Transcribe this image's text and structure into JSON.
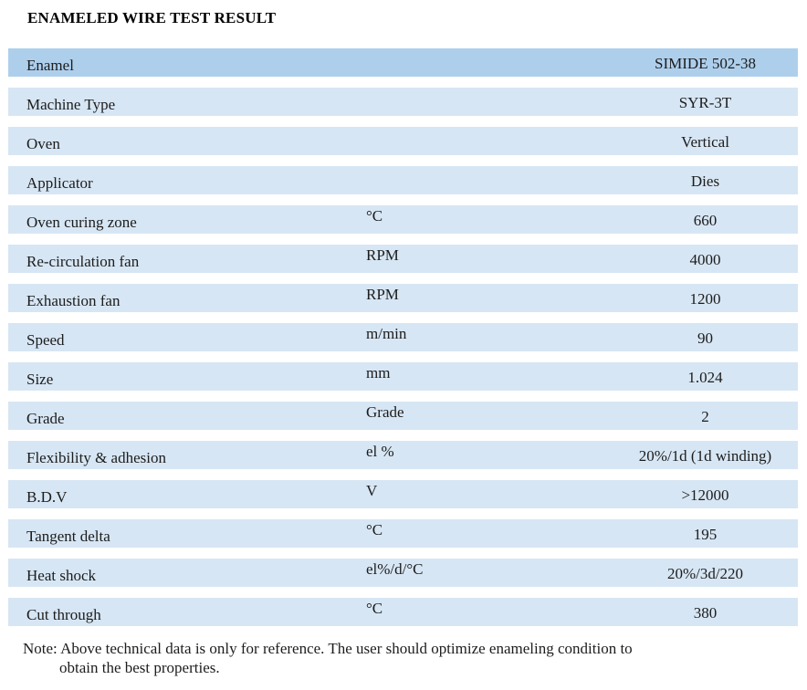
{
  "title": "ENAMELED WIRE TEST RESULT",
  "colors": {
    "row_highlight": "#aecfec",
    "row_normal": "#d7e6f4",
    "text": "#1c1c1c",
    "background": "#ffffff"
  },
  "table": {
    "rows": [
      {
        "label": "Enamel",
        "unit": "",
        "value": "SIMIDE 502-38"
      },
      {
        "label": "Machine Type",
        "unit": "",
        "value": "SYR-3T"
      },
      {
        "label": "Oven",
        "unit": "",
        "value": "Vertical"
      },
      {
        "label": "Applicator",
        "unit": "",
        "value": "Dies"
      },
      {
        "label": "Oven curing zone",
        "unit": "°C",
        "value": "660"
      },
      {
        "label": "Re-circulation fan",
        "unit": "RPM",
        "value": "4000"
      },
      {
        "label": "Exhaustion fan",
        "unit": "RPM",
        "value": "1200"
      },
      {
        "label": "Speed",
        "unit": "m/min",
        "value": "90"
      },
      {
        "label": "Size",
        "unit": "mm",
        "value": "1.024"
      },
      {
        "label": "Grade",
        "unit": "Grade",
        "value": "2"
      },
      {
        "label": "Flexibility & adhesion",
        "unit": "el %",
        "value": "20%/1d (1d winding)"
      },
      {
        "label": "B.D.V",
        "unit": "V",
        "value": ">12000"
      },
      {
        "label": "Tangent delta",
        "unit": "°C",
        "value": "195"
      },
      {
        "label": "Heat shock",
        "unit": "el%/d/°C",
        "value": "20%/3d/220"
      },
      {
        "label": "Cut through",
        "unit": "°C",
        "value": "380"
      }
    ]
  },
  "note": {
    "line1": "Note: Above technical data is only for reference. The user should optimize enameling condition to",
    "line2": "obtain the best properties."
  }
}
